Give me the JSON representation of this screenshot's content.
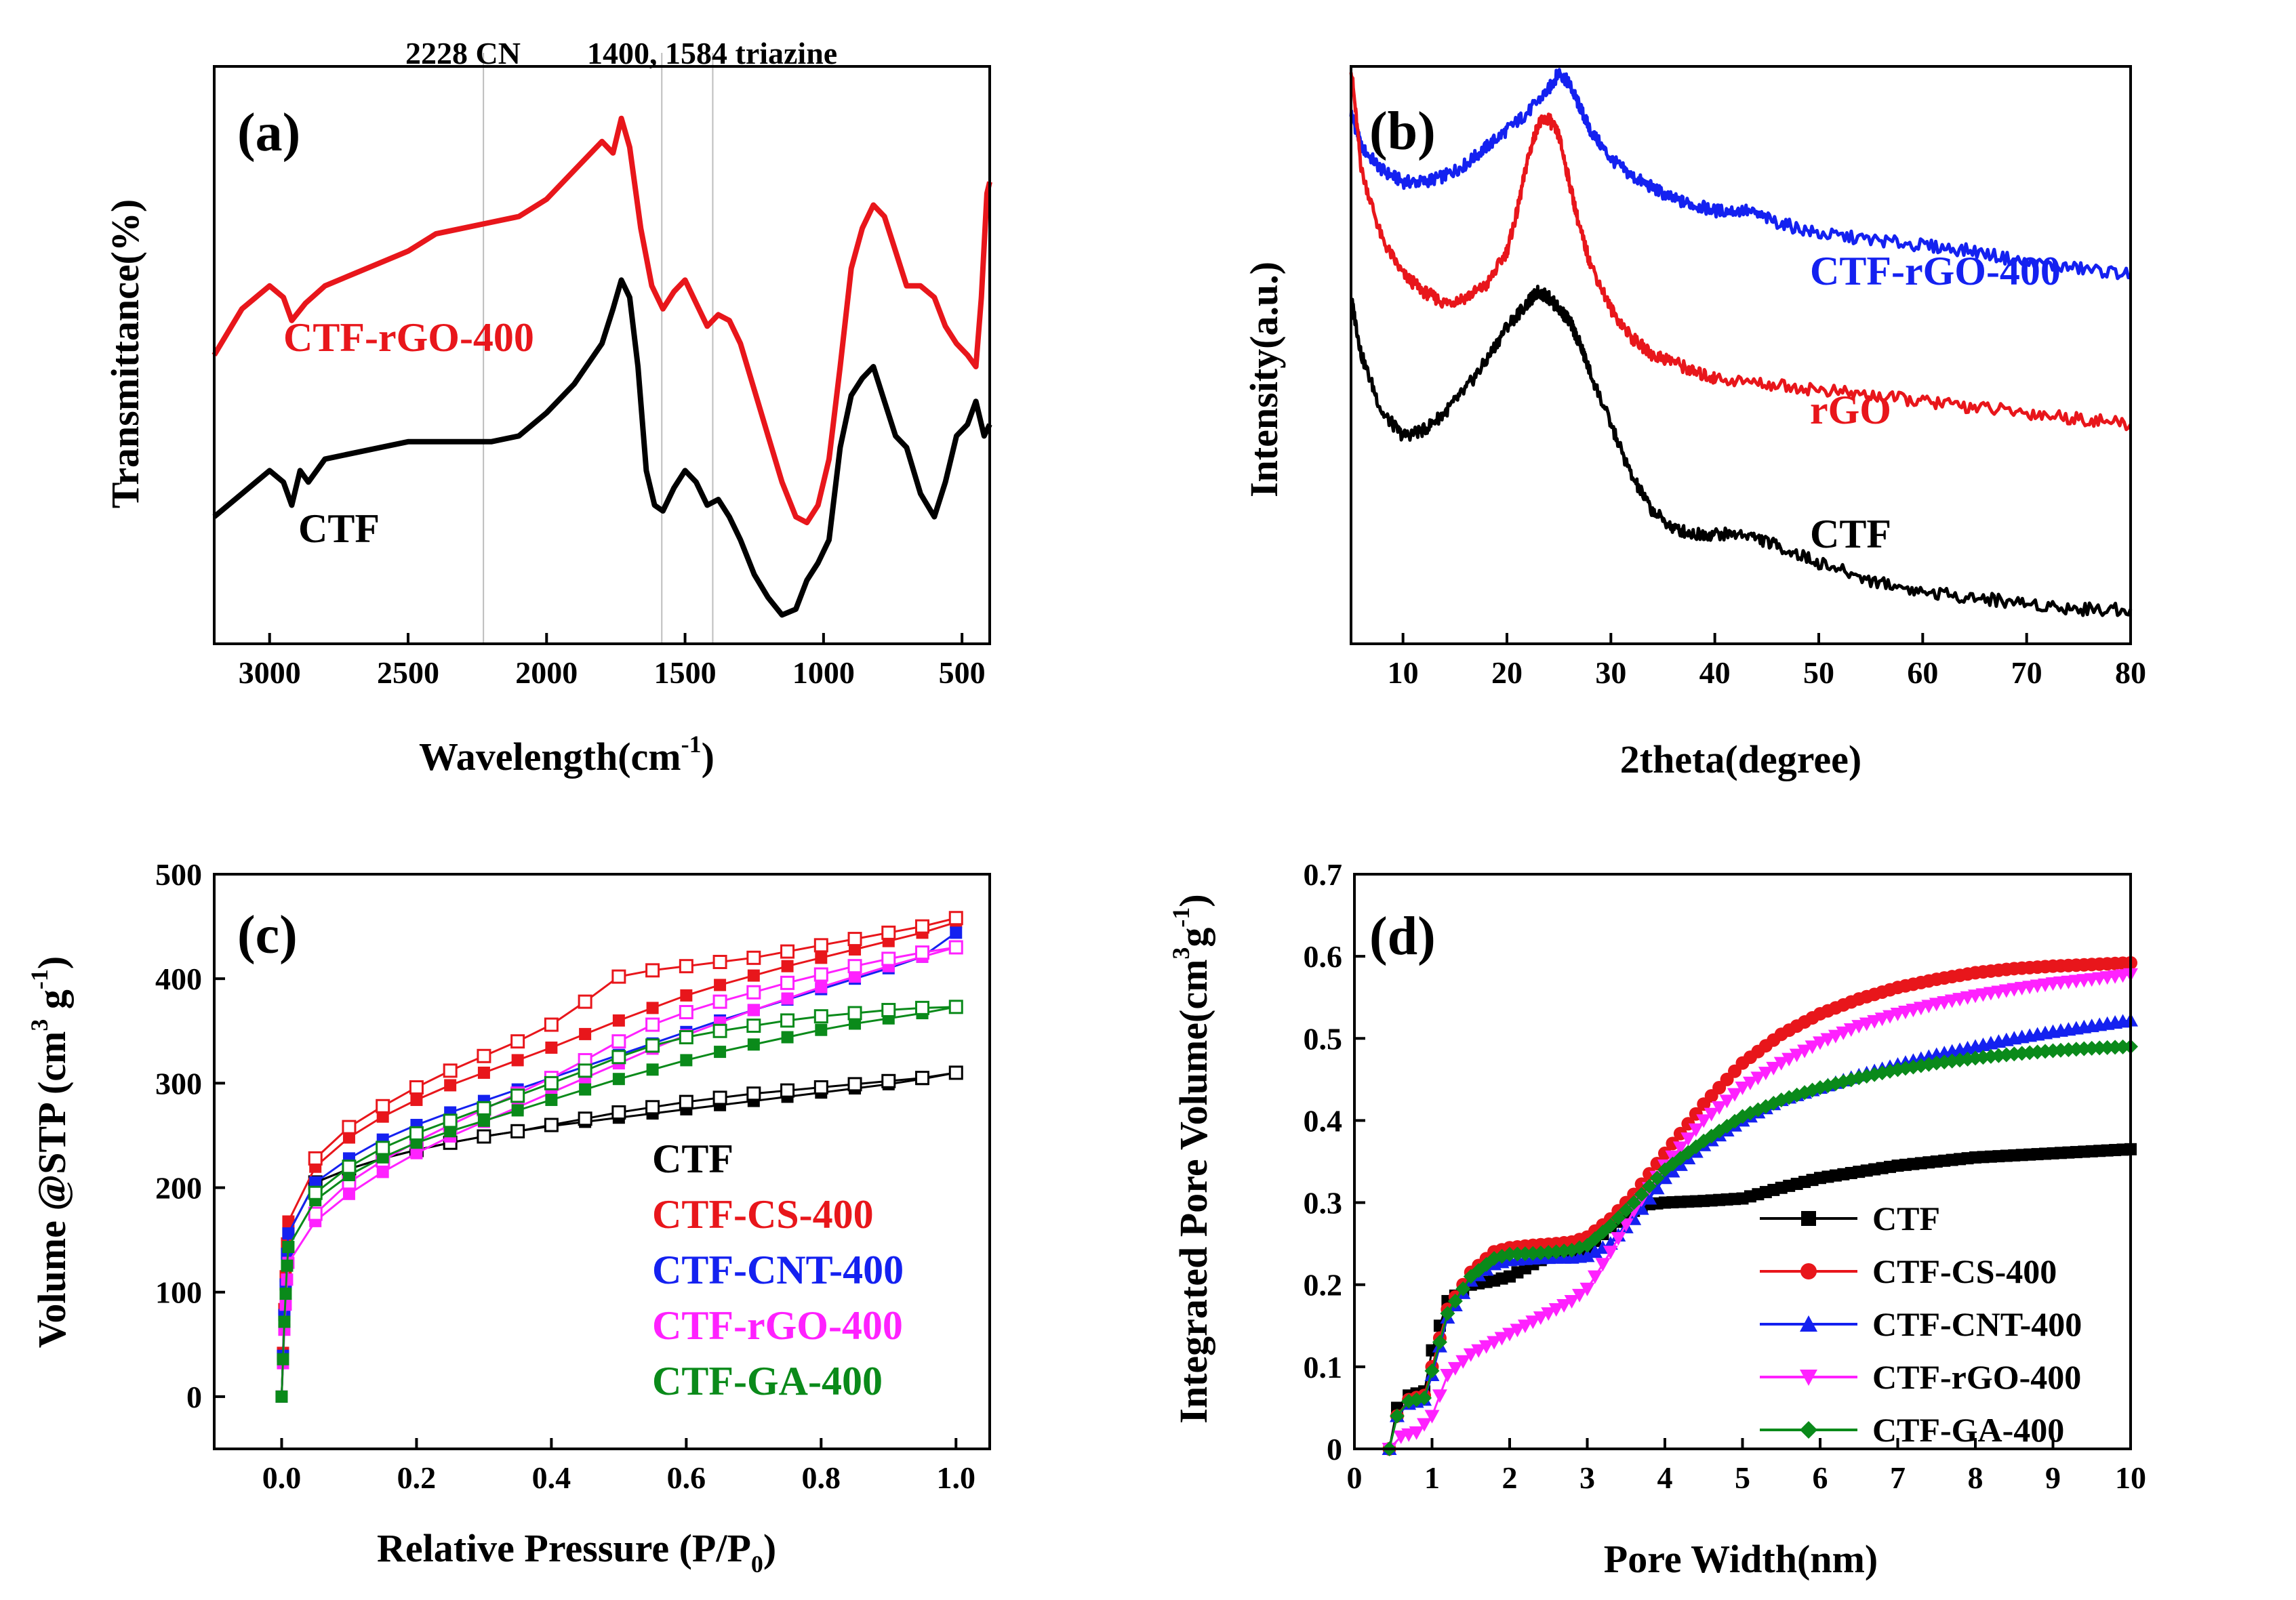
{
  "colors": {
    "black": "#000000",
    "red": "#e8161b",
    "blue": "#1421f0",
    "magenta": "#ff21ff",
    "green": "#0a8a1a"
  },
  "chart_data": [
    {
      "id": "a",
      "type": "line",
      "panel_label": "(a)",
      "xlabel": "Wavelength(cm",
      "xlabel_sup": "-1",
      "xlabel_end": ")",
      "ylabel": "Transmittance(%)",
      "xlim": [
        3200,
        400
      ],
      "ylim": [
        0,
        100
      ],
      "x_ticks": [
        3000,
        2500,
        2000,
        1500,
        1000,
        500
      ],
      "annotations": [
        {
          "text": "2228 CN",
          "x": 2228
        },
        {
          "text": "1400, 1584 triazine",
          "x": 1400
        }
      ],
      "reference_lines": [
        2228,
        1584,
        1400
      ],
      "series": [
        {
          "name": "CTF-rGO-400",
          "color": "red",
          "x": [
            3200,
            3100,
            3000,
            2950,
            2920,
            2870,
            2800,
            2700,
            2600,
            2500,
            2400,
            2300,
            2200,
            2100,
            2000,
            1900,
            1800,
            1760,
            1730,
            1700,
            1660,
            1620,
            1580,
            1540,
            1500,
            1460,
            1420,
            1380,
            1340,
            1300,
            1250,
            1200,
            1150,
            1100,
            1060,
            1020,
            980,
            940,
            900,
            860,
            820,
            780,
            740,
            700,
            650,
            600,
            560,
            520,
            480,
            450,
            430,
            410,
            400
          ],
          "y": [
            50,
            58,
            62,
            60,
            56,
            59,
            62,
            64,
            66,
            68,
            71,
            72,
            73,
            74,
            77,
            82,
            87,
            85,
            91,
            86,
            72,
            62,
            58,
            61,
            63,
            59,
            55,
            57,
            56,
            52,
            44,
            36,
            28,
            22,
            21,
            24,
            32,
            48,
            65,
            72,
            76,
            74,
            68,
            62,
            62,
            60,
            55,
            52,
            50,
            48,
            60,
            78,
            80
          ]
        },
        {
          "name": "CTF",
          "color": "black",
          "x": [
            3200,
            3100,
            3000,
            2950,
            2920,
            2890,
            2860,
            2800,
            2700,
            2600,
            2500,
            2400,
            2300,
            2200,
            2100,
            2000,
            1900,
            1800,
            1760,
            1730,
            1700,
            1670,
            1640,
            1610,
            1580,
            1540,
            1500,
            1460,
            1420,
            1380,
            1340,
            1300,
            1250,
            1200,
            1150,
            1100,
            1060,
            1020,
            980,
            940,
            900,
            860,
            820,
            780,
            740,
            700,
            650,
            600,
            560,
            520,
            480,
            450,
            420,
            400
          ],
          "y": [
            22,
            26,
            30,
            28,
            24,
            30,
            28,
            32,
            33,
            34,
            35,
            35,
            35,
            35,
            36,
            40,
            45,
            52,
            58,
            63,
            60,
            48,
            30,
            24,
            23,
            27,
            30,
            28,
            24,
            25,
            22,
            18,
            12,
            8,
            5,
            6,
            11,
            14,
            18,
            34,
            43,
            46,
            48,
            42,
            36,
            34,
            26,
            22,
            28,
            36,
            38,
            42,
            36,
            38
          ]
        }
      ]
    },
    {
      "id": "b",
      "type": "line",
      "panel_label": "(b)",
      "xlabel": "2theta(degree)",
      "ylabel": "Intensity(a.u.)",
      "xlim": [
        5,
        80
      ],
      "ylim": [
        0,
        100
      ],
      "x_ticks": [
        10,
        20,
        30,
        40,
        50,
        60,
        70,
        80
      ],
      "series": [
        {
          "name": "CTF-rGO-400",
          "color": "blue",
          "x": [
            5,
            6,
            8,
            10,
            12,
            14,
            16,
            18,
            20,
            22,
            24,
            25,
            26,
            27,
            28,
            30,
            32,
            34,
            36,
            38,
            40,
            43,
            46,
            50,
            55,
            60,
            65,
            70,
            75,
            80
          ],
          "y": [
            92,
            86,
            82,
            80,
            80,
            81,
            83,
            86,
            89,
            92,
            96,
            99,
            97,
            93,
            89,
            84,
            81,
            79,
            77,
            76,
            75,
            75,
            73,
            71,
            70,
            69,
            68,
            66,
            65,
            64
          ]
        },
        {
          "name": "rGO",
          "color": "red",
          "x": [
            5,
            6,
            8,
            10,
            12,
            14,
            16,
            18,
            20,
            21,
            22,
            23,
            24,
            25,
            26,
            27,
            28,
            30,
            32,
            34,
            36,
            38,
            40,
            45,
            50,
            55,
            60,
            65,
            70,
            75,
            80
          ],
          "y": [
            100,
            82,
            70,
            64,
            61,
            59,
            60,
            62,
            68,
            75,
            84,
            90,
            91,
            88,
            80,
            72,
            66,
            58,
            53,
            50,
            49,
            47,
            46,
            45,
            44,
            43,
            42,
            41,
            40,
            39,
            38
          ]
        },
        {
          "name": "CTF",
          "color": "black",
          "x": [
            5,
            6,
            8,
            10,
            12,
            14,
            16,
            18,
            20,
            22,
            23,
            24,
            25,
            26,
            27,
            28,
            30,
            32,
            34,
            36,
            38,
            40,
            43,
            46,
            50,
            55,
            60,
            65,
            70,
            75,
            80
          ],
          "y": [
            60,
            50,
            40,
            36,
            37,
            40,
            44,
            49,
            55,
            59,
            61,
            60,
            58,
            56,
            52,
            47,
            38,
            29,
            23,
            20,
            19,
            19,
            19,
            17,
            14,
            11,
            9,
            8,
            7,
            6,
            6
          ]
        }
      ],
      "series_labels": [
        "CTF-rGO-400",
        "rGO",
        "CTF"
      ]
    },
    {
      "id": "c",
      "type": "scatter",
      "panel_label": "(c)",
      "xlabel": "Relative Pressure (P/P",
      "xlabel_sub": "0",
      "xlabel_end": ")",
      "ylabel": "Volume @STP (cm",
      "ylabel_sup1": "3",
      "ylabel_mid": " g",
      "ylabel_sup2": "-1",
      "ylabel_end": ")",
      "xlim": [
        -0.1,
        1.05
      ],
      "ylim": [
        -50,
        500
      ],
      "x_ticks": [
        "0.0",
        "0.2",
        "0.4",
        "0.6",
        "0.8",
        "1.0"
      ],
      "y_ticks": [
        0,
        100,
        200,
        300,
        400,
        500
      ],
      "legend": [
        "CTF",
        "CTF-CS-400",
        "CTF-CNT-400",
        "CTF-rGO-400",
        "CTF-GA-400"
      ],
      "x_points": [
        0.05,
        0.1,
        0.15,
        0.2,
        0.25,
        0.3,
        0.35,
        0.4,
        0.45,
        0.5,
        0.55,
        0.6,
        0.65,
        0.7,
        0.75,
        0.8,
        0.85,
        0.9,
        0.95,
        1.0
      ],
      "series": [
        {
          "name": "CTF",
          "color": "black",
          "adsorption": [
            205,
            218,
            228,
            236,
            243,
            249,
            254,
            259,
            263,
            267,
            271,
            275,
            279,
            283,
            287,
            291,
            295,
            299,
            304,
            310
          ],
          "desorption": [
            205,
            218,
            228,
            236,
            243,
            249,
            254,
            260,
            266,
            272,
            277,
            282,
            286,
            290,
            293,
            296,
            299,
            302,
            305,
            310
          ]
        },
        {
          "name": "CTF-CS-400",
          "color": "red",
          "adsorption": [
            220,
            248,
            268,
            284,
            298,
            310,
            322,
            334,
            347,
            360,
            372,
            384,
            394,
            403,
            412,
            420,
            428,
            436,
            444,
            454
          ],
          "desorption": [
            228,
            258,
            278,
            296,
            312,
            326,
            340,
            356,
            378,
            402,
            408,
            412,
            416,
            420,
            426,
            432,
            438,
            444,
            450,
            458
          ]
        },
        {
          "name": "CTF-CNT-400",
          "color": "blue",
          "adsorption": [
            205,
            228,
            246,
            260,
            272,
            283,
            294,
            305,
            316,
            327,
            338,
            349,
            360,
            370,
            380,
            390,
            400,
            410,
            421,
            444
          ]
        },
        {
          "name": "CTF-rGO-400",
          "color": "magenta",
          "adsorption": [
            168,
            194,
            215,
            233,
            249,
            263,
            277,
            291,
            305,
            319,
            333,
            346,
            358,
            370,
            381,
            392,
            402,
            412,
            421,
            430
          ],
          "desorption": [
            175,
            205,
            226,
            244,
            260,
            275,
            290,
            305,
            322,
            340,
            356,
            368,
            378,
            387,
            396,
            404,
            412,
            419,
            425,
            430
          ]
        },
        {
          "name": "CTF-GA-400",
          "color": "green",
          "adsorption": [
            188,
            212,
            229,
            243,
            254,
            264,
            274,
            284,
            294,
            304,
            313,
            322,
            330,
            337,
            344,
            351,
            357,
            362,
            367,
            373
          ],
          "desorption": [
            195,
            220,
            238,
            252,
            264,
            276,
            288,
            300,
            312,
            325,
            336,
            344,
            350,
            355,
            360,
            364,
            367,
            370,
            372,
            373
          ]
        }
      ]
    },
    {
      "id": "d",
      "type": "scatter",
      "panel_label": "(d)",
      "xlabel": "Pore Width(nm)",
      "ylabel": "Integrated Pore Volume(cm",
      "ylabel_sup1": "3",
      "ylabel_mid": "g",
      "ylabel_sup2": "-1",
      "ylabel_end": ")",
      "xlim": [
        0,
        10
      ],
      "ylim": [
        0.0,
        0.7
      ],
      "x_ticks": [
        0,
        1,
        2,
        3,
        4,
        5,
        6,
        7,
        8,
        9,
        10
      ],
      "y_ticks": [
        "0.0",
        "0.1",
        "0.2",
        "0.3",
        "0.4",
        "0.5",
        "0.6",
        "0.7"
      ],
      "legend": [
        "CTF",
        "CTF-CS-400",
        "CTF-CNT-400",
        "CTF-rGO-400",
        "CTF-GA-400"
      ],
      "series": [
        {
          "name": "CTF",
          "color": "black",
          "x": [
            0.45,
            0.55,
            0.7,
            0.9,
            1.0,
            1.2,
            1.5,
            1.8,
            2.0,
            2.2,
            2.5,
            2.8,
            3.0,
            3.3,
            3.6,
            3.8,
            4.0,
            4.5,
            5.0,
            5.5,
            6.0,
            7.0,
            8.0,
            9.0,
            10.0
          ],
          "y": [
            0.0,
            0.05,
            0.065,
            0.07,
            0.12,
            0.18,
            0.2,
            0.205,
            0.21,
            0.22,
            0.235,
            0.24,
            0.245,
            0.27,
            0.29,
            0.298,
            0.3,
            0.302,
            0.305,
            0.318,
            0.33,
            0.345,
            0.355,
            0.36,
            0.365
          ]
        },
        {
          "name": "CTF-CS-400",
          "color": "red",
          "x": [
            0.45,
            0.55,
            0.7,
            0.9,
            1.0,
            1.2,
            1.5,
            1.8,
            2.0,
            2.3,
            2.6,
            2.8,
            3.0,
            3.3,
            3.6,
            4.0,
            4.5,
            5.0,
            5.5,
            6.0,
            6.5,
            7.0,
            7.5,
            8.0,
            8.5,
            9.0,
            9.5,
            10.0
          ],
          "y": [
            0.0,
            0.04,
            0.06,
            0.065,
            0.1,
            0.17,
            0.215,
            0.24,
            0.245,
            0.248,
            0.25,
            0.252,
            0.258,
            0.28,
            0.31,
            0.36,
            0.42,
            0.47,
            0.505,
            0.53,
            0.548,
            0.562,
            0.572,
            0.58,
            0.585,
            0.588,
            0.59,
            0.592
          ]
        },
        {
          "name": "CTF-CNT-400",
          "color": "blue",
          "x": [
            0.45,
            0.55,
            0.7,
            0.9,
            1.0,
            1.2,
            1.5,
            1.8,
            2.0,
            2.3,
            2.6,
            2.8,
            3.0,
            3.3,
            3.6,
            4.0,
            4.5,
            5.0,
            5.5,
            6.0,
            6.5,
            7.0,
            7.5,
            8.0,
            8.5,
            9.0,
            9.5,
            10.0
          ],
          "y": [
            0.0,
            0.04,
            0.055,
            0.06,
            0.09,
            0.16,
            0.205,
            0.225,
            0.23,
            0.232,
            0.233,
            0.233,
            0.235,
            0.25,
            0.28,
            0.33,
            0.37,
            0.4,
            0.425,
            0.44,
            0.455,
            0.468,
            0.48,
            0.49,
            0.5,
            0.508,
            0.515,
            0.522
          ]
        },
        {
          "name": "CTF-rGO-400",
          "color": "magenta",
          "x": [
            0.45,
            0.6,
            0.8,
            1.0,
            1.2,
            1.5,
            1.8,
            2.0,
            2.3,
            2.6,
            2.8,
            3.0,
            3.3,
            3.6,
            4.0,
            4.5,
            5.0,
            5.5,
            6.0,
            6.5,
            7.0,
            7.5,
            8.0,
            8.5,
            9.0,
            9.5,
            10.0
          ],
          "y": [
            0.0,
            0.015,
            0.02,
            0.04,
            0.09,
            0.115,
            0.13,
            0.14,
            0.155,
            0.17,
            0.18,
            0.195,
            0.24,
            0.29,
            0.345,
            0.4,
            0.44,
            0.47,
            0.495,
            0.515,
            0.53,
            0.542,
            0.552,
            0.56,
            0.567,
            0.572,
            0.578
          ]
        },
        {
          "name": "CTF-GA-400",
          "color": "green",
          "x": [
            0.45,
            0.55,
            0.7,
            0.9,
            1.0,
            1.2,
            1.5,
            1.8,
            2.0,
            2.3,
            2.6,
            2.8,
            3.0,
            3.3,
            3.6,
            4.0,
            4.5,
            5.0,
            5.5,
            6.0,
            6.5,
            7.0,
            7.5,
            8.0,
            8.5,
            9.0,
            9.5,
            10.0
          ],
          "y": [
            0.0,
            0.04,
            0.058,
            0.062,
            0.095,
            0.165,
            0.21,
            0.232,
            0.237,
            0.238,
            0.24,
            0.242,
            0.248,
            0.272,
            0.3,
            0.34,
            0.375,
            0.405,
            0.425,
            0.44,
            0.452,
            0.462,
            0.47,
            0.476,
            0.481,
            0.485,
            0.488,
            0.49
          ]
        }
      ]
    }
  ]
}
